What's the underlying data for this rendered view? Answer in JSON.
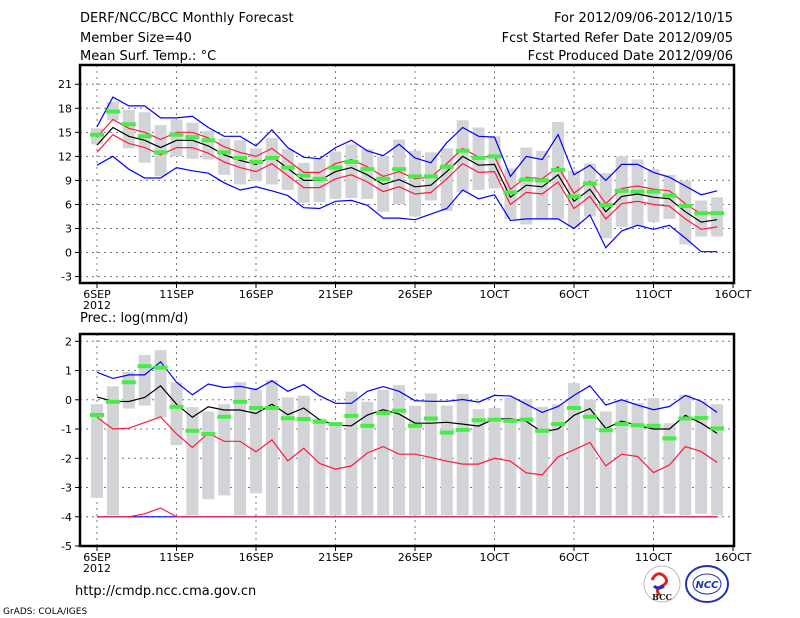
{
  "header": {
    "title": "DERF/NCC/BCC Monthly Forecast",
    "member_size": "Member Size=40",
    "variable": "Mean Surf. Temp.: °C",
    "period": "For 2012/09/06-2012/10/15",
    "started": "Fcst Started Refer Date 2012/09/05",
    "produced": "Fcst Produced Date 2012/09/06"
  },
  "footer": {
    "url": "http://cmdp.ncc.cma.gov.cn",
    "grads": "GrADS: COLA/IGES",
    "logo_bcc": "BCC",
    "logo_ncc": "NCC"
  },
  "colors": {
    "mean": "#000000",
    "spread": "#ff1a3c",
    "extreme": "#0000ff",
    "obs": "#44ee44",
    "box": "#d3d4d8"
  },
  "chart_data": [
    {
      "type": "line",
      "title": "Mean Surf. Temp.: °C",
      "x_start": "6SEP 2012",
      "days": 40,
      "xticks": [
        {
          "day": 0,
          "label": "6SEP"
        },
        {
          "day": 5,
          "label": "11SEP"
        },
        {
          "day": 10,
          "label": "16SEP"
        },
        {
          "day": 15,
          "label": "21SEP"
        },
        {
          "day": 20,
          "label": "26SEP"
        },
        {
          "day": 25,
          "label": "1OCT"
        },
        {
          "day": 30,
          "label": "6OCT"
        },
        {
          "day": 35,
          "label": "11OCT"
        },
        {
          "day": 40,
          "label": "16OCT"
        }
      ],
      "xsub": "2012",
      "yticks": [
        21,
        18,
        15,
        12,
        9,
        6,
        3,
        0,
        -3
      ],
      "ylim": [
        -3.8,
        23.4
      ],
      "grid": true,
      "series": [
        {
          "name": "ensemble-mean",
          "kind": "line",
          "color": "mean",
          "values": [
            13.4,
            15.6,
            14.5,
            14.0,
            13.1,
            14.0,
            14.0,
            13.3,
            12.2,
            11.5,
            11.0,
            12.0,
            10.5,
            9.0,
            9.0,
            10.1,
            10.6,
            9.7,
            8.5,
            9.1,
            8.2,
            8.4,
            10.1,
            12.0,
            10.9,
            11.0,
            6.9,
            8.4,
            8.2,
            9.7,
            6.4,
            7.9,
            5.1,
            7.0,
            7.3,
            6.9,
            6.7,
            5.1,
            3.8,
            4.1
          ]
        },
        {
          "name": "spread-upper",
          "kind": "line",
          "color": "spread",
          "values": [
            14.4,
            16.6,
            15.5,
            15.0,
            14.1,
            15.0,
            15.0,
            14.3,
            13.2,
            12.5,
            12.0,
            13.0,
            11.5,
            10.0,
            10.0,
            11.1,
            11.6,
            10.7,
            9.5,
            10.1,
            9.2,
            9.4,
            11.1,
            13.0,
            11.9,
            12.0,
            7.9,
            9.4,
            9.2,
            10.7,
            7.4,
            8.9,
            6.1,
            8.0,
            8.3,
            7.9,
            7.7,
            6.1,
            4.8,
            5.1
          ]
        },
        {
          "name": "spread-lower",
          "kind": "line",
          "color": "spread",
          "values": [
            12.5,
            14.7,
            13.6,
            13.1,
            12.2,
            13.1,
            13.1,
            12.4,
            11.3,
            10.6,
            10.1,
            11.1,
            9.6,
            8.1,
            8.1,
            9.2,
            9.7,
            8.8,
            7.6,
            8.2,
            7.3,
            7.5,
            9.2,
            11.1,
            10.0,
            10.1,
            6.0,
            7.5,
            7.3,
            8.8,
            5.5,
            7.0,
            4.2,
            6.1,
            6.4,
            6.0,
            5.8,
            4.2,
            2.9,
            3.2
          ]
        },
        {
          "name": "maximum",
          "kind": "line",
          "color": "extreme",
          "values": [
            15.7,
            19.4,
            18.3,
            18.3,
            16.8,
            16.8,
            17.0,
            15.6,
            14.5,
            14.5,
            13.3,
            15.3,
            13.1,
            11.9,
            11.7,
            13.1,
            14.0,
            12.7,
            12.1,
            13.5,
            11.8,
            11.2,
            13.7,
            15.6,
            14.5,
            14.4,
            9.5,
            12.0,
            11.6,
            14.7,
            9.7,
            10.9,
            9.0,
            11.0,
            11.0,
            10.0,
            9.4,
            8.3,
            7.2,
            7.7
          ]
        },
        {
          "name": "minimum",
          "kind": "line",
          "color": "extreme",
          "values": [
            10.9,
            12.0,
            10.4,
            9.3,
            9.3,
            10.6,
            10.2,
            9.9,
            8.7,
            7.8,
            8.2,
            7.7,
            7.1,
            5.6,
            5.5,
            6.4,
            6.5,
            5.9,
            4.3,
            4.3,
            4.1,
            4.8,
            5.5,
            7.8,
            6.7,
            7.2,
            4.0,
            4.2,
            4.2,
            4.2,
            3.0,
            4.7,
            0.6,
            2.7,
            3.4,
            2.9,
            3.4,
            1.8,
            0.1,
            0.1
          ]
        },
        {
          "name": "observed",
          "kind": "mark",
          "color": "obs",
          "values": [
            14.7,
            17.6,
            16.0,
            14.5,
            12.5,
            14.7,
            14.4,
            14.0,
            12.5,
            11.8,
            11.3,
            11.8,
            10.6,
            9.6,
            9.2,
            10.6,
            11.3,
            10.4,
            9.2,
            10.4,
            9.5,
            9.5,
            10.7,
            12.7,
            11.8,
            12.0,
            7.5,
            9.1,
            9.0,
            10.3,
            7.0,
            8.6,
            5.9,
            7.7,
            7.6,
            7.6,
            7.1,
            5.8,
            4.9,
            4.9
          ]
        }
      ],
      "box_hi": [
        15.5,
        18.8,
        17.8,
        17.5,
        15.9,
        16.6,
        16.2,
        15.2,
        14.2,
        14.0,
        13.0,
        14.3,
        12.9,
        11.2,
        11.7,
        12.6,
        13.5,
        12.9,
        12.0,
        14.1,
        12.7,
        12.5,
        13.0,
        16.5,
        15.6,
        14.5,
        10.5,
        13.1,
        12.7,
        16.3,
        10.2,
        11.1,
        9.9,
        12.0,
        11.6,
        10.4,
        9.7,
        9.0,
        6.5,
        6.9
      ],
      "box_lo": [
        13.5,
        16.5,
        13.0,
        11.2,
        9.5,
        12.0,
        11.7,
        11.6,
        9.7,
        8.5,
        8.9,
        8.5,
        7.8,
        6.2,
        6.3,
        6.7,
        6.8,
        6.7,
        5.1,
        6.0,
        4.5,
        6.5,
        5.2,
        7.5,
        7.8,
        8.0,
        4.2,
        3.5,
        4.2,
        4.1,
        3.2,
        4.5,
        1.8,
        3.2,
        3.3,
        3.8,
        4.2,
        1.0,
        2.0,
        2.0
      ]
    },
    {
      "type": "line",
      "title": "Prec.: log(mm/d)",
      "x_start": "6SEP 2012",
      "days": 40,
      "xticks": [
        {
          "day": 0,
          "label": "6SEP"
        },
        {
          "day": 5,
          "label": "11SEP"
        },
        {
          "day": 10,
          "label": "16SEP"
        },
        {
          "day": 15,
          "label": "21SEP"
        },
        {
          "day": 20,
          "label": "26SEP"
        },
        {
          "day": 25,
          "label": "1OCT"
        },
        {
          "day": 30,
          "label": "6OCT"
        },
        {
          "day": 35,
          "label": "11OCT"
        },
        {
          "day": 40,
          "label": "16OCT"
        }
      ],
      "xsub": "2012",
      "yticks": [
        2,
        1,
        0,
        -1,
        -2,
        -3,
        -4,
        -5
      ],
      "ylim": [
        -5,
        2.25
      ],
      "grid": true,
      "series": [
        {
          "name": "ensemble-mean",
          "kind": "line",
          "color": "mean",
          "values": [
            0.1,
            -0.05,
            -0.06,
            0.08,
            0.48,
            -0.15,
            -0.6,
            -0.24,
            -0.35,
            -0.35,
            -0.47,
            -0.15,
            -0.51,
            -0.28,
            -0.68,
            -0.87,
            -0.89,
            -0.52,
            -0.34,
            -0.49,
            -0.8,
            -0.8,
            -0.77,
            -0.83,
            -0.9,
            -0.65,
            -0.65,
            -0.74,
            -1.1,
            -1.0,
            -0.53,
            -0.3,
            -0.98,
            -0.73,
            -0.88,
            -1.0,
            -1.0,
            -0.53,
            -0.8,
            -1.15
          ]
        },
        {
          "name": "maximum",
          "kind": "line",
          "color": "extreme",
          "values": [
            0.94,
            0.73,
            0.85,
            0.85,
            1.3,
            0.6,
            0.17,
            0.54,
            0.42,
            0.46,
            0.35,
            0.65,
            0.29,
            0.52,
            0.14,
            -0.12,
            -0.12,
            0.29,
            0.45,
            0.29,
            -0.03,
            -0.05,
            -0.05,
            0.01,
            -0.08,
            0.15,
            0.13,
            -0.15,
            -0.43,
            -0.23,
            0.15,
            0.48,
            -0.18,
            0.0,
            -0.18,
            -0.34,
            -0.23,
            0.15,
            -0.05,
            -0.43
          ]
        },
        {
          "name": "spread-lower",
          "kind": "line",
          "color": "spread",
          "values": [
            -0.6,
            -1.0,
            -0.97,
            -0.78,
            -0.58,
            -1.17,
            -1.63,
            -1.14,
            -1.42,
            -1.42,
            -1.78,
            -1.37,
            -2.09,
            -1.66,
            -2.18,
            -2.37,
            -2.26,
            -1.82,
            -1.6,
            -1.86,
            -1.86,
            -1.97,
            -2.1,
            -2.2,
            -2.2,
            -2.0,
            -2.1,
            -2.5,
            -2.57,
            -1.95,
            -1.71,
            -1.46,
            -2.26,
            -1.86,
            -1.94,
            -2.49,
            -2.23,
            -1.6,
            -1.77,
            -2.14
          ]
        },
        {
          "name": "minimum",
          "kind": "line",
          "color": "extreme",
          "values": [
            -4,
            -4,
            -4,
            -4,
            -4,
            -4,
            -4,
            -4,
            -4,
            -4,
            -4,
            -4,
            -4,
            -4,
            -4,
            -4,
            -4,
            -4,
            -4,
            -4,
            -4,
            -4,
            -4,
            -4,
            -4,
            -4,
            -4,
            -4,
            -4,
            -4,
            -4,
            -4,
            -4,
            -4,
            -4,
            -4,
            -4,
            -4,
            -4,
            -4
          ]
        },
        {
          "name": "spread-bottom",
          "kind": "line",
          "color": "spread",
          "values": [
            -4,
            -4,
            -4,
            -3.9,
            -3.7,
            -4,
            -4,
            -4,
            -4,
            -4,
            -4,
            -4,
            -4,
            -4,
            -4,
            -4,
            -4,
            -4,
            -4,
            -4,
            -4,
            -4,
            -4,
            -4,
            -4,
            -4,
            -4,
            -4,
            -4,
            -4,
            -4,
            -4,
            -4,
            -4,
            -4,
            -4,
            -4,
            -4,
            -4,
            -4
          ]
        },
        {
          "name": "observed",
          "kind": "mark",
          "color": "obs",
          "values": [
            -0.52,
            -0.07,
            0.6,
            1.15,
            1.1,
            -0.24,
            -1.06,
            -1.17,
            -0.58,
            -0.07,
            -0.28,
            -0.28,
            -0.63,
            -0.66,
            -0.75,
            -0.83,
            -0.55,
            -0.89,
            -0.45,
            -0.37,
            -0.89,
            -0.64,
            -1.12,
            -1.03,
            -0.7,
            -0.68,
            -0.72,
            -0.68,
            -1.06,
            -0.83,
            -0.28,
            -0.58,
            -1.04,
            -0.83,
            -0.87,
            -0.89,
            -1.32,
            -0.64,
            -0.62,
            -0.98
          ]
        }
      ],
      "box_hi": [
        -0.15,
        0.46,
        0.95,
        1.53,
        1.7,
        0.6,
        -0.25,
        -0.4,
        -0.15,
        0.6,
        0.35,
        0.67,
        0.08,
        0.14,
        -0.64,
        -0.83,
        0.28,
        -0.07,
        0.34,
        0.5,
        -0.2,
        0.22,
        -0.2,
        0.2,
        -0.32,
        -0.28,
        0.07,
        0.01,
        -0.24,
        -0.15,
        0.57,
        0.01,
        -0.4,
        0.0,
        -0.11,
        0.06,
        -0.8,
        0.17,
        -0.05,
        -0.15
      ],
      "box_lo": [
        -3.35,
        -3.95,
        -0.3,
        -0.2,
        -0.6,
        -1.55,
        -3.95,
        -3.4,
        -3.27,
        -3.95,
        -3.2,
        -3.95,
        -3.95,
        -3.95,
        -3.95,
        -3.95,
        -3.95,
        -3.95,
        -3.95,
        -3.95,
        -3.95,
        -3.95,
        -3.95,
        -3.95,
        -3.95,
        -3.95,
        -3.95,
        -3.95,
        -3.95,
        -3.95,
        -3.95,
        -3.95,
        -3.95,
        -3.95,
        -3.95,
        -3.95,
        -3.9,
        -3.95,
        -3.9,
        -3.95
      ]
    }
  ]
}
